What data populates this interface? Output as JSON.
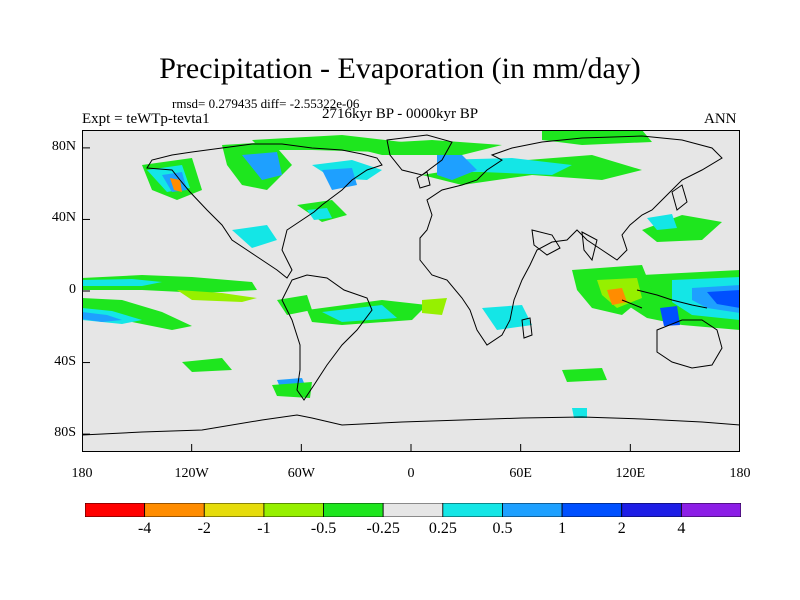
{
  "title": "Precipitation - Evaporation (in mm/day)",
  "stats": "rmsd= 0.279435 diff= -2.55322e-06",
  "period": "2716kyr BP - 0000kyr BP",
  "experiment": "Expt = teWTp-tevta1",
  "season": "ANN",
  "y_axis": {
    "tick_labels": [
      "80N",
      "40N",
      "0",
      "40S",
      "80S"
    ],
    "ticks_deg": [
      80,
      40,
      0,
      -40,
      -80
    ],
    "range": [
      -90,
      90
    ]
  },
  "x_axis": {
    "tick_labels": [
      "180",
      "120W",
      "60W",
      "0",
      "60E",
      "120E",
      "180"
    ],
    "ticks_deg": [
      -180,
      -120,
      -60,
      0,
      60,
      120,
      180
    ],
    "range": [
      -180,
      180
    ]
  },
  "colorbar": {
    "colors": [
      "#ff0000",
      "#ff8c00",
      "#e6dc0a",
      "#96f000",
      "#1ee61e",
      "#e6e6e6",
      "#14e6e6",
      "#1ea0ff",
      "#0050ff",
      "#1e1ee6",
      "#8c1ee6"
    ],
    "labels": [
      "-4",
      "-2",
      "-1",
      "-0.5",
      "-0.25",
      "0.25",
      "0.5",
      "1",
      "2",
      "4"
    ]
  },
  "field_colors": {
    "background": "#e6e6e6",
    "coast": "#000000"
  }
}
